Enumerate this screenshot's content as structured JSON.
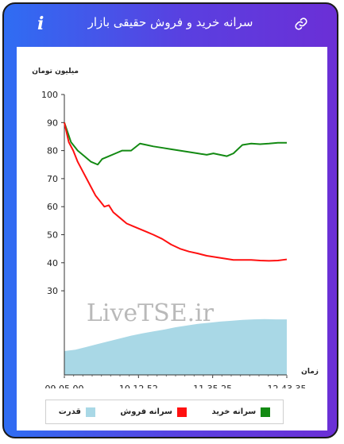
{
  "header": {
    "title": "سرانه خرید و فروش حقیقی بازار",
    "info_icon": "i"
  },
  "watermark": "LiveTSE.ir",
  "legend": [
    {
      "label": "سرانه خرید",
      "color": "#138a13"
    },
    {
      "label": "سرانه فروش",
      "color": "#ff1010"
    },
    {
      "label": "قدرت",
      "color": "#a9d8e6"
    }
  ],
  "chart_data": {
    "type": "line",
    "ylabel": "میلیون تومان",
    "xlabel": "زمان",
    "ylim": [
      0,
      100
    ],
    "y_ticks": [
      30,
      40,
      50,
      60,
      70,
      80,
      90,
      100
    ],
    "x_tick_labels": [
      "09.05.00",
      "10.12.52",
      "11.35.25",
      "12.43.35"
    ],
    "grid": false,
    "x_range": [
      0,
      100
    ],
    "series": [
      {
        "name": "سرانه خرید",
        "color": "#138a13",
        "x": [
          0,
          3,
          6,
          9,
          12,
          15,
          17,
          20,
          23,
          26,
          30,
          34,
          37,
          40,
          44,
          48,
          52,
          56,
          60,
          64,
          67,
          70,
          73,
          76,
          80,
          84,
          88,
          92,
          96,
          100
        ],
        "y": [
          90,
          83,
          80,
          78,
          76,
          75,
          77,
          78,
          79,
          80,
          80,
          82.5,
          82,
          81.5,
          81,
          80.5,
          80,
          79.5,
          79,
          78.5,
          79,
          78.5,
          78,
          79,
          82,
          82.5,
          82.3,
          82.5,
          82.8,
          82.8
        ]
      },
      {
        "name": "سرانه فروش",
        "color": "#ff1010",
        "x": [
          0,
          2,
          4,
          6,
          8,
          10,
          12,
          14,
          16,
          18,
          20,
          22,
          25,
          28,
          31,
          34,
          37,
          40,
          44,
          48,
          52,
          56,
          60,
          64,
          68,
          72,
          76,
          80,
          84,
          88,
          92,
          96,
          100
        ],
        "y": [
          90,
          83,
          80,
          76,
          73,
          70,
          67,
          64,
          62,
          60,
          60.5,
          58,
          56,
          54,
          53,
          52,
          51,
          50,
          48.5,
          46.5,
          45,
          44,
          43.3,
          42.5,
          42,
          41.5,
          41,
          41,
          41,
          40.8,
          40.7,
          40.8,
          41.2
        ]
      },
      {
        "name": "قدرت",
        "color": "#a9d8e6",
        "x": [
          0,
          5,
          10,
          15,
          20,
          25,
          30,
          35,
          40,
          45,
          50,
          55,
          60,
          65,
          70,
          75,
          80,
          85,
          90,
          95,
          100
        ],
        "y": [
          8.5,
          9,
          10,
          11,
          12,
          13,
          14,
          14.8,
          15.5,
          16.2,
          17,
          17.6,
          18.2,
          18.6,
          19,
          19.3,
          19.6,
          19.8,
          19.9,
          19.8,
          19.8
        ]
      }
    ]
  }
}
